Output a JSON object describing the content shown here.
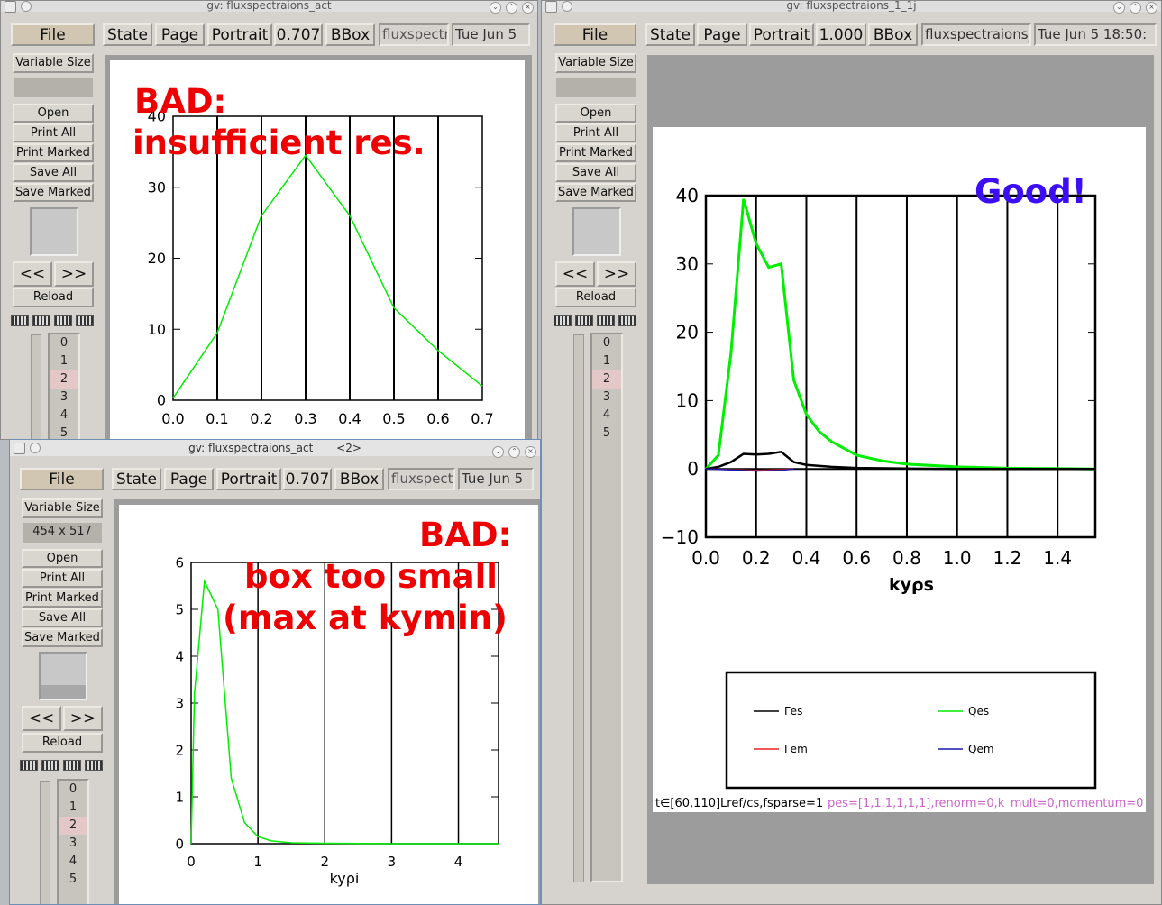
{
  "colors": {
    "bad": "#ff0000",
    "good": "#3b0ef5",
    "flux_green": "#00ee00",
    "selected_page": "#e4c8c8",
    "legend_red": "#ee2222",
    "legend_blue": "#1a1aaa",
    "footer_pink": "#cc66cc"
  },
  "windows": {
    "left_top": {
      "title": "gv: fluxspectraions_act",
      "toolbar": {
        "file": "File",
        "state": "State",
        "page": "Page",
        "orientation": "Portrait",
        "scale": "0.707",
        "bbox": "BBox",
        "filename": "fluxspectra",
        "date": "Tue Jun  5"
      },
      "sidebar": {
        "variable_size": "Variable Size",
        "open": "Open",
        "print_all": "Print All",
        "print_marked": "Print Marked",
        "save_all": "Save All",
        "save_marked": "Save Marked",
        "prev": "<<",
        "next": ">>",
        "reload": "Reload",
        "pages": [
          "0",
          "1",
          "2",
          "3",
          "4",
          "5"
        ],
        "selected_page": "2"
      },
      "annotation_line1": "BAD:",
      "annotation_line2": "insufficient res.",
      "chart_data": {
        "type": "line",
        "x": [
          0.0,
          0.1,
          0.2,
          0.3,
          0.4,
          0.5,
          0.6,
          0.7
        ],
        "series": [
          {
            "values": [
              0.3,
              9.5,
              26,
              34.5,
              26,
              13,
              7,
              2
            ]
          }
        ],
        "xlim": [
          0,
          0.7
        ],
        "ylim": [
          0,
          40
        ],
        "xticks": [
          "0.0",
          "0.1",
          "0.2",
          "0.3",
          "0.4",
          "0.5",
          "0.6",
          "0.7"
        ],
        "yticks": [
          "0",
          "10",
          "20",
          "30",
          "40"
        ],
        "grid": "vertical lines at 0.1-0.6"
      }
    },
    "left_bottom": {
      "title": "gv: fluxspectraions_act",
      "title_suffix": "<2>",
      "toolbar": {
        "file": "File",
        "state": "State",
        "page": "Page",
        "orientation": "Portrait",
        "scale": "0.707",
        "bbox": "BBox",
        "filename": "fluxspectr",
        "date": "Tue Jun  5"
      },
      "sidebar": {
        "variable_size": "Variable Size",
        "size": "454 x 517",
        "open": "Open",
        "print_all": "Print All",
        "print_marked": "Print Marked",
        "save_all": "Save All",
        "save_marked": "Save Marked",
        "prev": "<<",
        "next": ">>",
        "reload": "Reload",
        "pages": [
          "0",
          "1",
          "2",
          "3",
          "4",
          "5"
        ],
        "selected_page": "2"
      },
      "annotation_line1": "BAD:",
      "annotation_line2": "box too small",
      "annotation_line3": "(max at kymin)",
      "xlabel": "kyρi",
      "chart_data": {
        "type": "line",
        "x": [
          0.0,
          0.05,
          0.2,
          0.4,
          0.6,
          0.8,
          1.0,
          1.2,
          1.5,
          2.0,
          3.0,
          4.0,
          4.6
        ],
        "series": [
          {
            "values": [
              0.0,
              3.2,
              5.6,
              5.0,
              1.4,
              0.45,
              0.15,
              0.06,
              0.02,
              0.01,
              0.0,
              0.0,
              0.0
            ]
          }
        ],
        "xlim": [
          0,
          4.6
        ],
        "ylim": [
          0,
          6
        ],
        "xticks": [
          "0",
          "1",
          "2",
          "3",
          "4"
        ],
        "yticks": [
          "0",
          "1",
          "2",
          "3",
          "4",
          "5",
          "6"
        ],
        "grid": "vertical lines at 1-4"
      }
    },
    "right": {
      "title": "gv: fluxspectraions_1_1j",
      "toolbar": {
        "file": "File",
        "state": "State",
        "page": "Page",
        "orientation": "Portrait",
        "scale": "1.000",
        "bbox": "BBox",
        "filename": "fluxspectraions_",
        "date": "Tue Jun  5 18:50:"
      },
      "sidebar": {
        "variable_size": "Variable Size",
        "open": "Open",
        "print_all": "Print All",
        "print_marked": "Print Marked",
        "save_all": "Save All",
        "save_marked": "Save Marked",
        "prev": "<<",
        "next": ">>",
        "reload": "Reload",
        "pages": [
          "0",
          "1",
          "2",
          "3",
          "4",
          "5"
        ],
        "selected_page": "2"
      },
      "annotation": "Good!",
      "xlabel": "kyρs",
      "legend": {
        "gamma_es": "Γes",
        "q_es": "Qes",
        "gamma_em": "Γem",
        "q_em": "Qem"
      },
      "footer_black": "t∈[60,110]Lref/cs,fsparse=1",
      "footer_pink": "pes=[1,1,1,1,1,1],renorm=0,k_mult=0,momentum=0",
      "chart_data": {
        "type": "line",
        "xlim": [
          0,
          1.55
        ],
        "ylim": [
          -10,
          40
        ],
        "xticks": [
          "0.0",
          "0.2",
          "0.4",
          "0.6",
          "0.8",
          "1.0",
          "1.2",
          "1.4"
        ],
        "yticks": [
          "−10",
          "0",
          "10",
          "20",
          "30",
          "40"
        ],
        "grid": "vertical lines every 0.2",
        "series": [
          {
            "name": "Qes",
            "x": [
              0.0,
              0.05,
              0.1,
              0.15,
              0.2,
              0.25,
              0.3,
              0.35,
              0.4,
              0.45,
              0.5,
              0.6,
              0.7,
              0.8,
              1.0,
              1.2,
              1.4,
              1.55
            ],
            "values": [
              0.0,
              2,
              17,
              39.5,
              33,
              29.5,
              30,
              13,
              8,
              5.5,
              4,
              2,
              1.2,
              0.7,
              0.3,
              0.1,
              0.05,
              0.0
            ]
          },
          {
            "name": "Γes",
            "x": [
              0.0,
              0.05,
              0.1,
              0.15,
              0.2,
              0.25,
              0.3,
              0.35,
              0.4,
              0.5,
              0.6,
              0.8,
              1.0,
              1.55
            ],
            "values": [
              0.0,
              0.3,
              1.0,
              2.2,
              2.1,
              2.2,
              2.5,
              1.0,
              0.6,
              0.3,
              0.15,
              0.05,
              0.0,
              0.0
            ]
          },
          {
            "name": "Γem",
            "x": [
              0.0,
              0.1,
              0.2,
              0.3,
              0.35
            ],
            "values": [
              0.0,
              -0.1,
              -0.2,
              -0.1,
              0.0
            ]
          },
          {
            "name": "Qem",
            "x": [
              0.0,
              0.1,
              0.2,
              0.3,
              0.35
            ],
            "values": [
              0.0,
              -0.15,
              -0.3,
              -0.2,
              0.0
            ]
          }
        ]
      }
    }
  }
}
